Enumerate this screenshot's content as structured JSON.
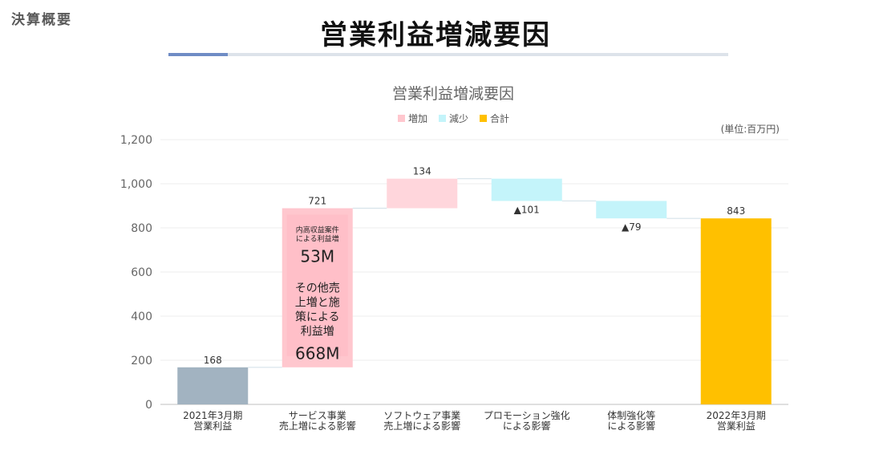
{
  "header": {
    "section_label": "決算概要",
    "page_title": "営業利益増減要因"
  },
  "chart_data": {
    "type": "waterfall",
    "title": "営業利益増減要因",
    "unit_note": "(単位:百万円)",
    "legend": [
      {
        "label": "増加",
        "color": "#ffc7ce"
      },
      {
        "label": "減少",
        "color": "#c4f4fa"
      },
      {
        "label": "合計",
        "color": "#ffc000"
      }
    ],
    "ylim": [
      0,
      1200
    ],
    "yticks": [
      "0",
      "200",
      "400",
      "600",
      "800",
      "1,000",
      "1,200"
    ],
    "ytick_values": [
      0,
      200,
      400,
      600,
      800,
      1000,
      1200
    ],
    "categories": [
      [
        "2021年3月期",
        "営業利益"
      ],
      [
        "サービス事業",
        "売上増による影響"
      ],
      [
        "ソフトウェア事業",
        "売上増による影響"
      ],
      [
        "プロモーション強化",
        "による影響"
      ],
      [
        "体制強化等",
        "による影響"
      ],
      [
        "2022年3月期",
        "営業利益"
      ]
    ],
    "bars": [
      {
        "kind": "total",
        "base": 0,
        "value": 168,
        "label": "168",
        "color": "#a2b3c1"
      },
      {
        "kind": "increase",
        "base": 168,
        "value": 721,
        "label": "721",
        "color": "#ffc7ce"
      },
      {
        "kind": "increase",
        "base": 889,
        "value": 134,
        "label": "134",
        "color": "#ffd6dc"
      },
      {
        "kind": "decrease",
        "base": 1023,
        "value": -101,
        "label": "▲101",
        "color": "#c4f4fa"
      },
      {
        "kind": "decrease",
        "base": 922,
        "value": -79,
        "label": "▲79",
        "color": "#c4f4fa"
      },
      {
        "kind": "total",
        "base": 0,
        "value": 843,
        "label": "843",
        "color": "#ffc000"
      }
    ],
    "annotations": {
      "small_caption": [
        "内高収益案件",
        "による利益増"
      ],
      "small_value": "53M",
      "large_caption": [
        "その他売",
        "上増と施",
        "策による",
        "利益増"
      ],
      "large_value": "668M"
    },
    "grid": true
  }
}
